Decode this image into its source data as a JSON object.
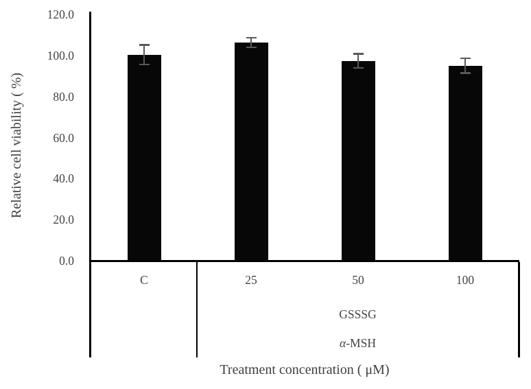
{
  "chart_data": {
    "type": "bar",
    "title": "",
    "xlabel": "Treatment concentration ( μM)",
    "ylabel": "Relative cell viability ( %)",
    "categories": [
      "C",
      "25",
      "50",
      "100"
    ],
    "values": [
      100.3,
      106.3,
      97.3,
      95.0
    ],
    "error_bars": [
      4.8,
      2.4,
      3.5,
      3.6
    ],
    "group_labels": {
      "substance": "GSSSG",
      "stimulant_alpha": "α",
      "stimulant_rest": "-MSH"
    },
    "y_ticks": [
      "120.0",
      "100.0",
      "80.0",
      "60.0",
      "40.0",
      "20.0",
      "0.0"
    ],
    "ylim": [
      0,
      120
    ],
    "grid": false,
    "legend_position": "none",
    "bar_color": "#070707",
    "error_bar_color": "#595959",
    "axis_color": "#000000",
    "text_color": "#444444",
    "background_color": "#ffffff"
  }
}
